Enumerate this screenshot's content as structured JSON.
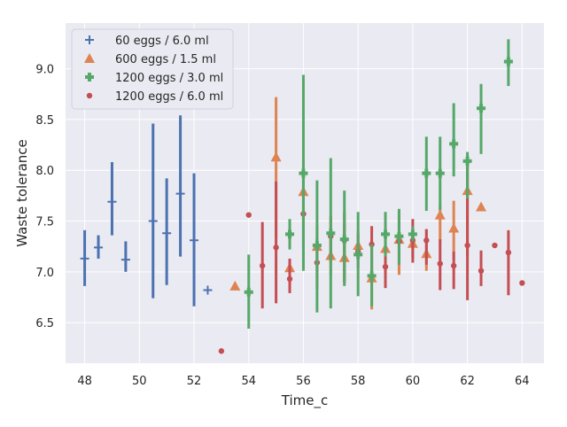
{
  "chart_data": {
    "type": "scatter",
    "title": "",
    "xlabel": "Time_c",
    "ylabel": "Waste tolerance",
    "xlim": [
      47.3,
      64.8
    ],
    "ylim": [
      6.1,
      9.45
    ],
    "xticks": [
      48,
      50,
      52,
      54,
      56,
      58,
      60,
      62,
      64
    ],
    "yticks": [
      6.5,
      7.0,
      7.5,
      8.0,
      8.5,
      9.0
    ],
    "xtick_labels": [
      "48",
      "50",
      "52",
      "54",
      "56",
      "58",
      "60",
      "62",
      "64"
    ],
    "ytick_labels": [
      "6.5",
      "7.0",
      "7.5",
      "8.0",
      "8.5",
      "9.0"
    ],
    "grid": true,
    "background": "#eaeaf2",
    "legend_position": "upper-left",
    "series": [
      {
        "name": "60 eggs / 6.0 ml",
        "marker": "plus",
        "color": "#4c72b0",
        "points": [
          {
            "x": 48.0,
            "y": 7.13,
            "lo": 6.86,
            "hi": 7.41
          },
          {
            "x": 48.5,
            "y": 7.24,
            "lo": 7.13,
            "hi": 7.36
          },
          {
            "x": 49.0,
            "y": 7.69,
            "lo": 7.36,
            "hi": 8.08
          },
          {
            "x": 49.5,
            "y": 7.12,
            "lo": 7.0,
            "hi": 7.3
          },
          {
            "x": 50.5,
            "y": 7.5,
            "lo": 6.74,
            "hi": 8.46
          },
          {
            "x": 51.0,
            "y": 7.38,
            "lo": 6.87,
            "hi": 7.92
          },
          {
            "x": 51.5,
            "y": 7.77,
            "lo": 7.15,
            "hi": 8.54
          },
          {
            "x": 52.0,
            "y": 7.31,
            "lo": 6.66,
            "hi": 7.97
          },
          {
            "x": 52.5,
            "y": 6.82,
            "lo": null,
            "hi": null
          }
        ]
      },
      {
        "name": "600 eggs / 1.5 ml",
        "marker": "triangle",
        "color": "#dd8452",
        "points": [
          {
            "x": 53.5,
            "y": 6.86,
            "lo": null,
            "hi": null
          },
          {
            "x": 55.0,
            "y": 8.13,
            "lo": 7.33,
            "hi": 8.72
          },
          {
            "x": 55.5,
            "y": 7.04,
            "lo": 6.87,
            "hi": 7.12
          },
          {
            "x": 56.0,
            "y": 7.79,
            "lo": 7.05,
            "hi": 8.1
          },
          {
            "x": 56.5,
            "y": 7.25,
            "lo": 7.02,
            "hi": 7.46
          },
          {
            "x": 57.0,
            "y": 7.16,
            "lo": 6.97,
            "hi": 7.34
          },
          {
            "x": 57.5,
            "y": 7.14,
            "lo": 6.9,
            "hi": 7.47
          },
          {
            "x": 58.0,
            "y": 7.26,
            "lo": 7.13,
            "hi": 7.4
          },
          {
            "x": 58.5,
            "y": 6.94,
            "lo": 6.63,
            "hi": 7.23
          },
          {
            "x": 59.0,
            "y": 7.23,
            "lo": 6.95,
            "hi": 7.37
          },
          {
            "x": 59.5,
            "y": 7.32,
            "lo": 6.97,
            "hi": 7.6
          },
          {
            "x": 60.0,
            "y": 7.28,
            "lo": 7.14,
            "hi": 7.44
          },
          {
            "x": 60.5,
            "y": 7.18,
            "lo": 7.01,
            "hi": 7.42
          },
          {
            "x": 61.0,
            "y": 7.56,
            "lo": 7.3,
            "hi": 7.66
          },
          {
            "x": 61.5,
            "y": 7.43,
            "lo": 7.12,
            "hi": 7.7
          },
          {
            "x": 62.0,
            "y": 7.8,
            "lo": 7.15,
            "hi": 8.07
          },
          {
            "x": 62.5,
            "y": 7.64,
            "lo": null,
            "hi": null
          }
        ]
      },
      {
        "name": "1200 eggs / 3.0 ml",
        "marker": "plus-thick",
        "color": "#55a868",
        "points": [
          {
            "x": 54.0,
            "y": 6.8,
            "lo": 6.44,
            "hi": 7.17
          },
          {
            "x": 55.5,
            "y": 7.37,
            "lo": 7.22,
            "hi": 7.52
          },
          {
            "x": 56.0,
            "y": 7.97,
            "lo": 7.01,
            "hi": 8.94
          },
          {
            "x": 56.5,
            "y": 7.26,
            "lo": 6.6,
            "hi": 7.9
          },
          {
            "x": 57.0,
            "y": 7.38,
            "lo": 6.64,
            "hi": 8.12
          },
          {
            "x": 57.5,
            "y": 7.32,
            "lo": 6.86,
            "hi": 7.8
          },
          {
            "x": 58.0,
            "y": 7.17,
            "lo": 6.76,
            "hi": 7.59
          },
          {
            "x": 58.5,
            "y": 6.96,
            "lo": 6.66,
            "hi": 7.27
          },
          {
            "x": 59.0,
            "y": 7.37,
            "lo": 7.15,
            "hi": 7.59
          },
          {
            "x": 59.5,
            "y": 7.35,
            "lo": 7.07,
            "hi": 7.62
          },
          {
            "x": 60.0,
            "y": 7.37,
            "lo": 7.3,
            "hi": 7.45
          },
          {
            "x": 60.5,
            "y": 7.97,
            "lo": 7.6,
            "hi": 8.33
          },
          {
            "x": 61.0,
            "y": 7.97,
            "lo": 7.61,
            "hi": 8.33
          },
          {
            "x": 61.5,
            "y": 8.26,
            "lo": 7.94,
            "hi": 8.66
          },
          {
            "x": 62.0,
            "y": 8.09,
            "lo": 7.72,
            "hi": 8.18
          },
          {
            "x": 62.5,
            "y": 8.61,
            "lo": 8.16,
            "hi": 8.85
          },
          {
            "x": 63.5,
            "y": 9.07,
            "lo": 8.83,
            "hi": 9.29
          }
        ]
      },
      {
        "name": "1200 eggs / 6.0 ml",
        "marker": "dot",
        "color": "#c44e52",
        "points": [
          {
            "x": 53.0,
            "y": 6.22,
            "lo": null,
            "hi": null
          },
          {
            "x": 54.0,
            "y": 7.56,
            "lo": null,
            "hi": null
          },
          {
            "x": 54.5,
            "y": 7.06,
            "lo": 6.64,
            "hi": 7.49
          },
          {
            "x": 55.0,
            "y": 7.24,
            "lo": 6.69,
            "hi": 7.89
          },
          {
            "x": 55.5,
            "y": 6.93,
            "lo": 6.79,
            "hi": 7.13
          },
          {
            "x": 56.0,
            "y": 7.57,
            "lo": 7.23,
            "hi": 7.98
          },
          {
            "x": 56.5,
            "y": 7.09,
            "lo": 6.83,
            "hi": 7.34
          },
          {
            "x": 57.0,
            "y": 7.35,
            "lo": 7.1,
            "hi": 7.55
          },
          {
            "x": 57.5,
            "y": 7.31,
            "lo": 6.89,
            "hi": 7.59
          },
          {
            "x": 58.0,
            "y": 7.2,
            "lo": 7.04,
            "hi": 7.37
          },
          {
            "x": 58.5,
            "y": 7.27,
            "lo": 6.96,
            "hi": 7.45
          },
          {
            "x": 59.0,
            "y": 7.05,
            "lo": 6.84,
            "hi": 7.3
          },
          {
            "x": 59.5,
            "y": 7.3,
            "lo": 7.07,
            "hi": 7.56
          },
          {
            "x": 60.0,
            "y": 7.31,
            "lo": 7.09,
            "hi": 7.52
          },
          {
            "x": 60.5,
            "y": 7.31,
            "lo": 7.07,
            "hi": 7.42
          },
          {
            "x": 61.0,
            "y": 7.08,
            "lo": 6.82,
            "hi": 7.32
          },
          {
            "x": 61.5,
            "y": 7.06,
            "lo": 6.83,
            "hi": 7.2
          },
          {
            "x": 62.0,
            "y": 7.26,
            "lo": 6.72,
            "hi": 8.06
          },
          {
            "x": 62.5,
            "y": 7.01,
            "lo": 6.86,
            "hi": 7.21
          },
          {
            "x": 63.0,
            "y": 7.26,
            "lo": null,
            "hi": null
          },
          {
            "x": 63.5,
            "y": 7.19,
            "lo": 6.77,
            "hi": 7.41
          },
          {
            "x": 64.0,
            "y": 6.89,
            "lo": null,
            "hi": null
          }
        ]
      }
    ]
  }
}
